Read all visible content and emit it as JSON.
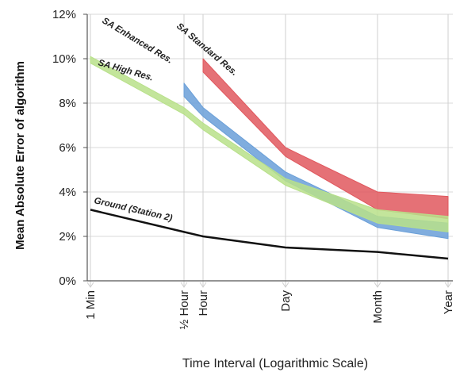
{
  "chart_data": {
    "type": "area",
    "title": "",
    "xlabel": "Time Interval (Logarithmic Scale)",
    "ylabel": "Mean Absolute Error of algorithm",
    "x_scale": "log",
    "x_ticks": [
      "1 Min",
      "½ Hour",
      "Hour",
      "Day",
      "Month",
      "Year"
    ],
    "y_ticks": [
      "0%",
      "2%",
      "4%",
      "6%",
      "8%",
      "10%",
      "12%"
    ],
    "ylim": [
      0,
      12
    ],
    "grid": "vertical",
    "series": [
      {
        "name": "SA Standard Res.",
        "color": "#e0585e",
        "x": [
          "Hour",
          "Day",
          "Month",
          "Year"
        ],
        "upper": [
          10.0,
          6.0,
          4.0,
          3.8
        ],
        "lower": [
          9.4,
          5.6,
          3.2,
          2.8
        ]
      },
      {
        "name": "SA Enhanced Res.",
        "color": "#6a9fd8",
        "x": [
          "½ Hour",
          "Hour",
          "Day",
          "Month",
          "Year"
        ],
        "upper": [
          8.9,
          7.8,
          4.9,
          2.9,
          2.6
        ],
        "lower": [
          8.3,
          7.4,
          4.5,
          2.4,
          1.9
        ]
      },
      {
        "name": "SA High Res.",
        "color": "#b8e08a",
        "x": [
          "1 Min",
          "½ Hour",
          "Hour",
          "Day",
          "Month",
          "Year"
        ],
        "upper": [
          10.1,
          7.8,
          7.1,
          4.6,
          3.2,
          2.9
        ],
        "lower": [
          9.8,
          7.5,
          6.8,
          4.3,
          2.6,
          2.2
        ]
      },
      {
        "name": "Ground (Station 2)",
        "color": "#111111",
        "x": [
          "1 Min",
          "½ Hour",
          "Hour",
          "Day",
          "Month",
          "Year"
        ],
        "values": [
          3.2,
          2.2,
          2.0,
          1.5,
          1.3,
          1.0
        ]
      }
    ]
  }
}
